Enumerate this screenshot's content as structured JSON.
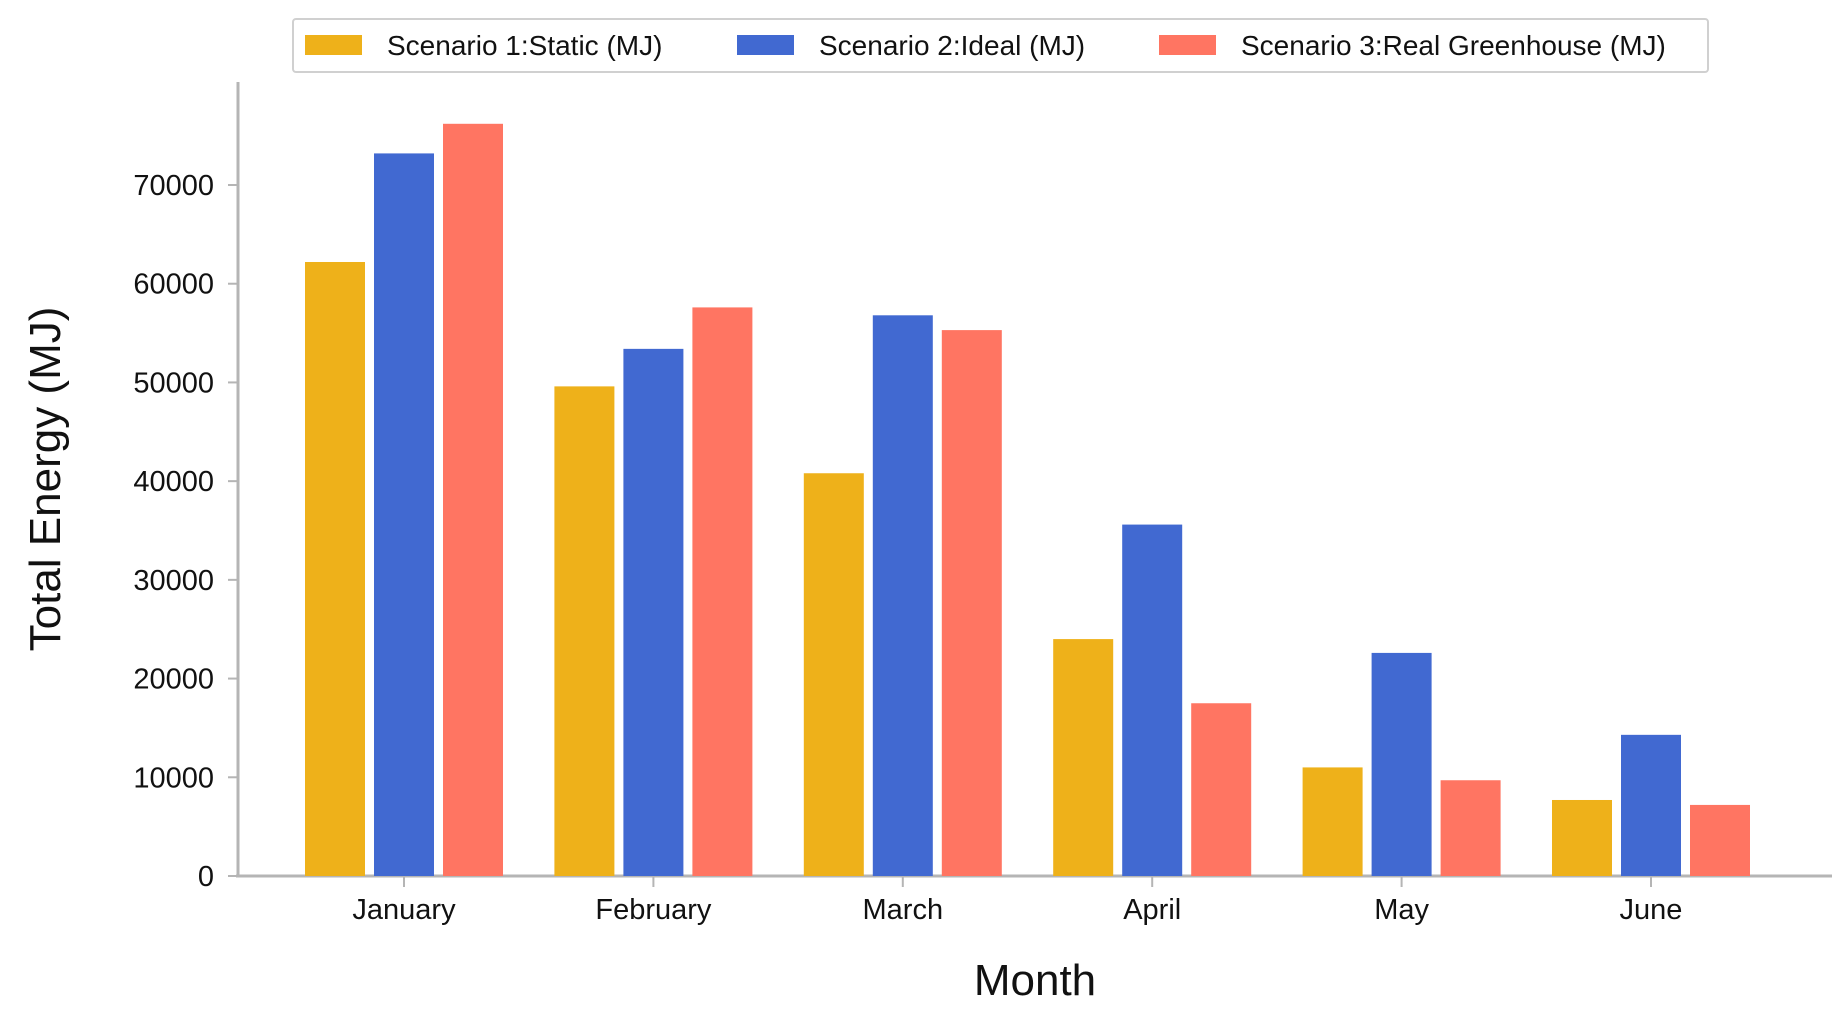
{
  "chart_data": {
    "type": "bar",
    "title": "",
    "xlabel": "Month",
    "ylabel": "Total Energy (MJ)",
    "categories": [
      "January",
      "February",
      "March",
      "April",
      "May",
      "June"
    ],
    "series": [
      {
        "name": "Scenario 1:Static (MJ)",
        "color": "#EEB11A",
        "values": [
          62200,
          49600,
          40800,
          24000,
          11000,
          7700
        ]
      },
      {
        "name": "Scenario 2:Ideal (MJ)",
        "color": "#4169D1",
        "values": [
          73200,
          53400,
          56800,
          35600,
          22600,
          14300
        ]
      },
      {
        "name": "Scenario 3:Real Greenhouse (MJ)",
        "color": "#FF7562",
        "values": [
          76200,
          57600,
          55300,
          17500,
          9700,
          7200
        ]
      }
    ],
    "ylim": [
      0,
      80000
    ],
    "yticks": [
      0,
      10000,
      20000,
      30000,
      40000,
      50000,
      60000,
      70000
    ],
    "ytick_labels": [
      "0",
      "10000",
      "20000",
      "30000",
      "40000",
      "50000",
      "60000",
      "70000"
    ],
    "grid": false,
    "legend_position": "top"
  }
}
